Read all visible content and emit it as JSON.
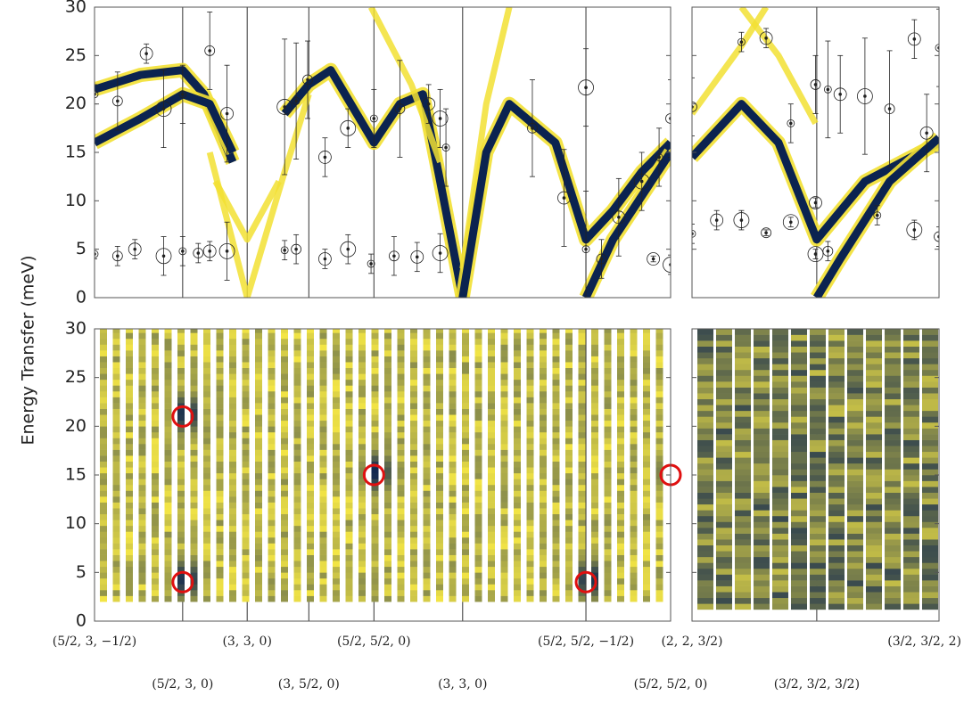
{
  "y_label": "Energy Transfer (meV)",
  "chart_data": [
    {
      "type": "line",
      "ylim": [
        0,
        30
      ],
      "yticks": [
        0,
        5,
        10,
        15,
        20,
        25,
        30
      ],
      "xlim": [
        0,
        1
      ],
      "series": [
        {
          "color": "#0b2350",
          "x": [
            0,
            0.08,
            0.153,
            0.19,
            0.24
          ],
          "values": [
            21.5,
            23,
            23.5,
            21,
            14
          ]
        },
        {
          "color": "#0b2350",
          "x": [
            0,
            0.08,
            0.153,
            0.2,
            0.24
          ],
          "values": [
            16,
            18.5,
            21,
            20,
            15
          ]
        },
        {
          "color": "#f2e033",
          "x": [
            0.2,
            0.265,
            0.33,
            0.372
          ],
          "values": [
            15,
            0,
            13,
            21
          ]
        },
        {
          "color": "#f2e033",
          "x": [
            0.21,
            0.265,
            0.32
          ],
          "values": [
            12,
            6,
            12
          ]
        },
        {
          "color": "#0b2350",
          "x": [
            0.33,
            0.372,
            0.41,
            0.485,
            0.53,
            0.57,
            0.6,
            0.639
          ],
          "values": [
            19,
            22,
            23.5,
            16,
            20,
            21,
            12,
            0
          ]
        },
        {
          "color": "#f2e033",
          "x": [
            0.48,
            0.55,
            0.6
          ],
          "values": [
            30,
            22,
            14
          ]
        },
        {
          "color": "#f2e033",
          "x": [
            0.639,
            0.68,
            0.72
          ],
          "values": [
            3,
            20,
            30
          ]
        },
        {
          "color": "#0b2350",
          "x": [
            0.639,
            0.68,
            0.72,
            0.8,
            0.853,
            0.9,
            0.95,
            1.0
          ],
          "values": [
            0,
            15,
            20,
            16,
            6,
            9,
            13,
            16
          ]
        },
        {
          "color": "#0b2350",
          "x": [
            0.853,
            0.9,
            1.0
          ],
          "values": [
            0,
            6,
            15
          ]
        }
      ],
      "points": {
        "x": [
          0,
          0.04,
          0.07,
          0.12,
          0.153,
          0.18,
          0.2,
          0.23,
          0.33,
          0.35,
          0.4,
          0.44,
          0.48,
          0.52,
          0.56,
          0.6,
          0,
          0.04,
          0.09,
          0.12,
          0.153,
          0.2,
          0.23,
          0.33,
          0.35,
          0.37,
          0.4,
          0.44,
          0.485,
          0.53,
          0.58,
          0.6,
          0.61,
          0.76,
          0.815,
          0.853,
          0.853,
          0.88,
          0.91,
          0.95,
          0.98,
          1.0,
          0.97,
          1.0
        ],
        "values": [
          4.5,
          4.3,
          5,
          4.3,
          4.8,
          4.6,
          4.8,
          4.8,
          4.9,
          5,
          4,
          5,
          3.5,
          4.3,
          4.2,
          4.6,
          21,
          20.3,
          25.2,
          19.5,
          21,
          25.5,
          19,
          19.7,
          20.3,
          22.5,
          14.5,
          17.5,
          18.5,
          19.5,
          20,
          18.5,
          15.5,
          17.5,
          10.3,
          21.7,
          5,
          4,
          8.3,
          12,
          14.5,
          18.5,
          4,
          3.4
        ],
        "errors": [
          0.5,
          1,
          1,
          2,
          1.5,
          1,
          1,
          3,
          1,
          1.5,
          1,
          1.5,
          1,
          2,
          1.5,
          2,
          1,
          3,
          1,
          4,
          3,
          4,
          5,
          7,
          6,
          4,
          2,
          2,
          3,
          5,
          2,
          3,
          4,
          5,
          5,
          4,
          6,
          2,
          4,
          3,
          3,
          4,
          0.3,
          1
        ]
      },
      "color": "#222222"
    },
    {
      "type": "line",
      "ylim": [
        0,
        30
      ],
      "yticks": [
        0,
        5,
        10,
        15,
        20,
        25,
        30
      ],
      "xlim": [
        0,
        1
      ],
      "series": [
        {
          "color": "#f2e033",
          "x": [
            0,
            0.2,
            0.3
          ],
          "values": [
            19,
            26,
            30
          ]
        },
        {
          "color": "#f2e033",
          "x": [
            0.2,
            0.35,
            0.5
          ],
          "values": [
            30,
            25,
            18
          ]
        },
        {
          "color": "#0b2350",
          "x": [
            0,
            0.2,
            0.35,
            0.505,
            0.7,
            1
          ],
          "values": [
            14.5,
            20,
            16,
            6,
            12,
            16
          ]
        },
        {
          "color": "#0b2350",
          "x": [
            0.505,
            0.6,
            0.8,
            1
          ],
          "values": [
            0,
            4,
            12,
            16.5
          ]
        }
      ],
      "points": {
        "x": [
          0,
          0,
          0.1,
          0.2,
          0.2,
          0.3,
          0.3,
          0.4,
          0.4,
          0.5,
          0.5,
          0.5,
          0.55,
          0.55,
          0.6,
          0.7,
          0.75,
          0.8,
          0.9,
          0.9,
          1,
          1,
          0.95
        ],
        "values": [
          6.6,
          19.7,
          8,
          8,
          26.4,
          6.7,
          26.8,
          7.8,
          18,
          22,
          9.8,
          4.5,
          21.5,
          4.8,
          21,
          20.8,
          8.5,
          19.5,
          26.7,
          7,
          25.8,
          6.3,
          17
        ],
        "errors": [
          1,
          3,
          1,
          1,
          1,
          0.3,
          1,
          0.5,
          2,
          3,
          0.5,
          0.5,
          5,
          1,
          4,
          6,
          1,
          6,
          2,
          1,
          4,
          1,
          4
        ]
      },
      "color": "#222222"
    },
    {
      "type": "heatmap",
      "ylim": [
        0,
        30
      ],
      "yticks": [
        0,
        5,
        10,
        15,
        20,
        25,
        30
      ],
      "xlim": [
        0,
        1
      ],
      "xticks": [
        {
          "value": 0,
          "label": "(5/2, 3, −1/2)"
        },
        {
          "value": 0.153,
          "label": "(5/2, 3, 0)"
        },
        {
          "value": 0.265,
          "label": "(3, 3, 0)"
        },
        {
          "value": 0.372,
          "label": "(3, 5/2, 0)"
        },
        {
          "value": 0.485,
          "label": "(5/2, 5/2, 0)"
        },
        {
          "value": 0.639,
          "label": "(3, 3, 0)"
        },
        {
          "value": 0.853,
          "label": "(5/2, 5/2, −1/2)"
        },
        {
          "value": 1.0,
          "label": "(5/2, 5/2, 0)"
        }
      ],
      "markers": {
        "x": [
          0.153,
          0.153,
          0.485,
          0.853,
          1.0
        ],
        "values": [
          21,
          4,
          15,
          4,
          15
        ],
        "color": "#e01010"
      }
    },
    {
      "type": "heatmap",
      "ylim": [
        0,
        30
      ],
      "yticks": [
        0,
        5,
        10,
        15,
        20,
        25,
        30
      ],
      "xlim": [
        0,
        1
      ],
      "xticks": [
        {
          "value": 0,
          "label": "(2, 2, 3/2)"
        },
        {
          "value": 0.505,
          "label": "(3/2, 3/2, 3/2)"
        },
        {
          "value": 1.0,
          "label": "(3/2, 3/2, 2)"
        }
      ]
    }
  ]
}
